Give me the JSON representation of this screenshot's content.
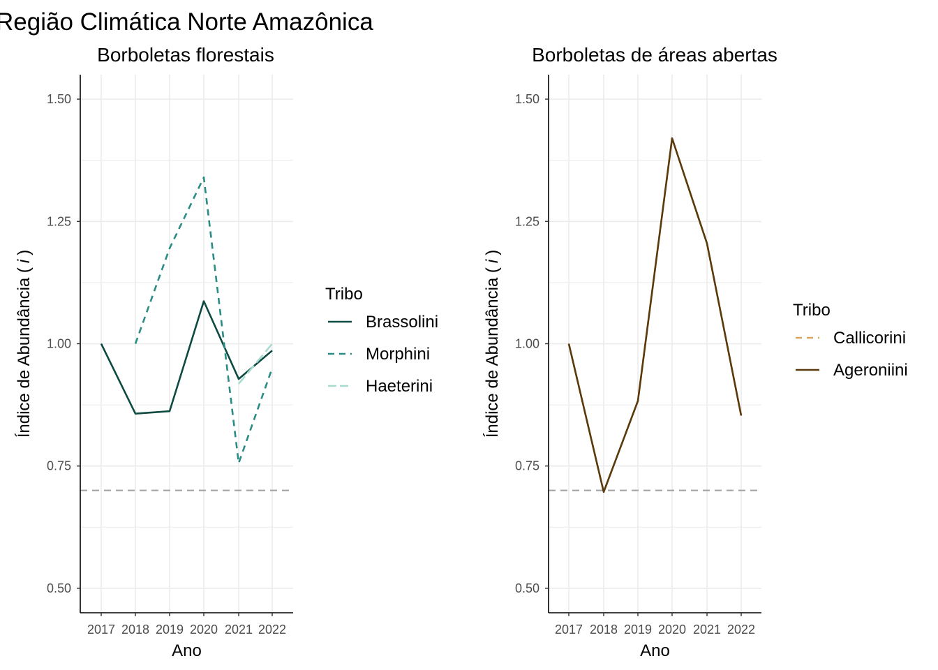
{
  "figure_title": "Região Climática Norte Amazônica",
  "colors": {
    "grid": "#ebebeb",
    "axis": "#000000",
    "reference_line": "#a6a6a6",
    "brassolini": "#0d4a42",
    "morphini": "#2a8c84",
    "haeterini": "#a7dccf",
    "callicorini": "#d8a55a",
    "ageroniini": "#5a3a0c"
  },
  "chart_data": [
    {
      "type": "line",
      "title": "Borboletas florestais",
      "xlabel": "Ano",
      "ylabel": "Índice de Abundância ( i )",
      "ylabel_main": "Índice de Abundância (",
      "ylabel_italic": "i",
      "ylabel_end": ")",
      "x": [
        "2017",
        "2018",
        "2019",
        "2020",
        "2021",
        "2022"
      ],
      "ylim": [
        0.45,
        1.55
      ],
      "yticks": [
        0.5,
        0.75,
        1.0,
        1.25,
        1.5
      ],
      "ytick_labels": [
        "0.50",
        "0.75",
        "1.00",
        "1.25",
        "1.50"
      ],
      "reference_line": 0.7,
      "legend_title": "Tribo",
      "legend_position": "right",
      "series": [
        {
          "name": "Brassolini",
          "style": "solid",
          "color": "#0d4a42",
          "values": [
            1.0,
            0.857,
            0.862,
            1.087,
            0.928,
            0.986
          ]
        },
        {
          "name": "Morphini",
          "style": "dashed",
          "color": "#2a8c84",
          "values": [
            null,
            1.0,
            1.195,
            1.34,
            0.756,
            0.95
          ]
        },
        {
          "name": "Haeterini",
          "style": "longdash",
          "color": "#a7dccf",
          "values": [
            null,
            null,
            null,
            null,
            0.918,
            1.0
          ]
        }
      ]
    },
    {
      "type": "line",
      "title": "Borboletas de áreas abertas",
      "xlabel": "Ano",
      "ylabel": "Índice de Abundância ( i )",
      "ylabel_main": "Índice de Abundância (",
      "ylabel_italic": "i",
      "ylabel_end": ")",
      "x": [
        "2017",
        "2018",
        "2019",
        "2020",
        "2021",
        "2022"
      ],
      "ylim": [
        0.45,
        1.55
      ],
      "yticks": [
        0.5,
        0.75,
        1.0,
        1.25,
        1.5
      ],
      "ytick_labels": [
        "0.50",
        "0.75",
        "1.00",
        "1.25",
        "1.50"
      ],
      "reference_line": 0.7,
      "legend_title": "Tribo",
      "legend_position": "right",
      "series": [
        {
          "name": "Callicorini",
          "style": "dashed",
          "color": "#d8a55a",
          "values": [
            1.0,
            0.697,
            0.883,
            1.42,
            1.205,
            0.853
          ]
        },
        {
          "name": "Ageroniini",
          "style": "solid",
          "color": "#5a3a0c",
          "values": [
            1.0,
            0.697,
            0.883,
            1.42,
            1.205,
            0.853
          ]
        }
      ]
    }
  ]
}
